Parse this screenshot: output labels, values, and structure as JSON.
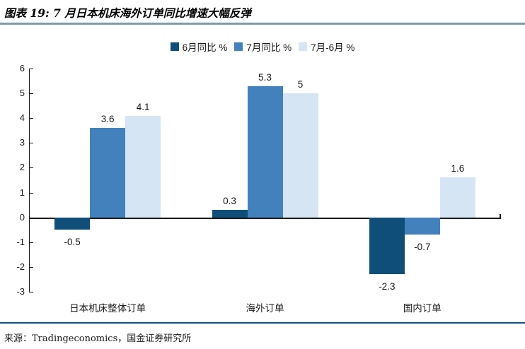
{
  "header": {
    "title": "图表 19: 7 月日本机床海外订单同比增速大幅反弹"
  },
  "chart_data": {
    "type": "bar",
    "title": "图表 19: 7 月日本机床海外订单同比增速大幅反弹",
    "categories": [
      "日本机床整体订单",
      "海外订单",
      "国内订单"
    ],
    "series": [
      {
        "name": "6月同比 %",
        "color": "#0F4E79",
        "values": [
          -0.5,
          0.3,
          -2.3
        ]
      },
      {
        "name": "7月同比 %",
        "color": "#4381BD",
        "values": [
          3.6,
          5.3,
          -0.7
        ]
      },
      {
        "name": "7月-6月 %",
        "color": "#D6E5F3",
        "values": [
          4.1,
          5,
          1.6
        ]
      }
    ],
    "xlabel": "",
    "ylabel": "",
    "ylim": [
      -3,
      6
    ],
    "yticks": [
      6,
      5,
      4,
      3,
      2,
      1,
      0,
      -1,
      -2,
      -3
    ],
    "grid": false,
    "legend_position": "top",
    "value_labels": true
  },
  "footer": {
    "source": "来源：Tradingeconomics，国金证券研究所"
  },
  "colors": {
    "title_rule": "#7E9BA7",
    "source_rule": "#164E7B",
    "axis": "#1A1A1A"
  }
}
